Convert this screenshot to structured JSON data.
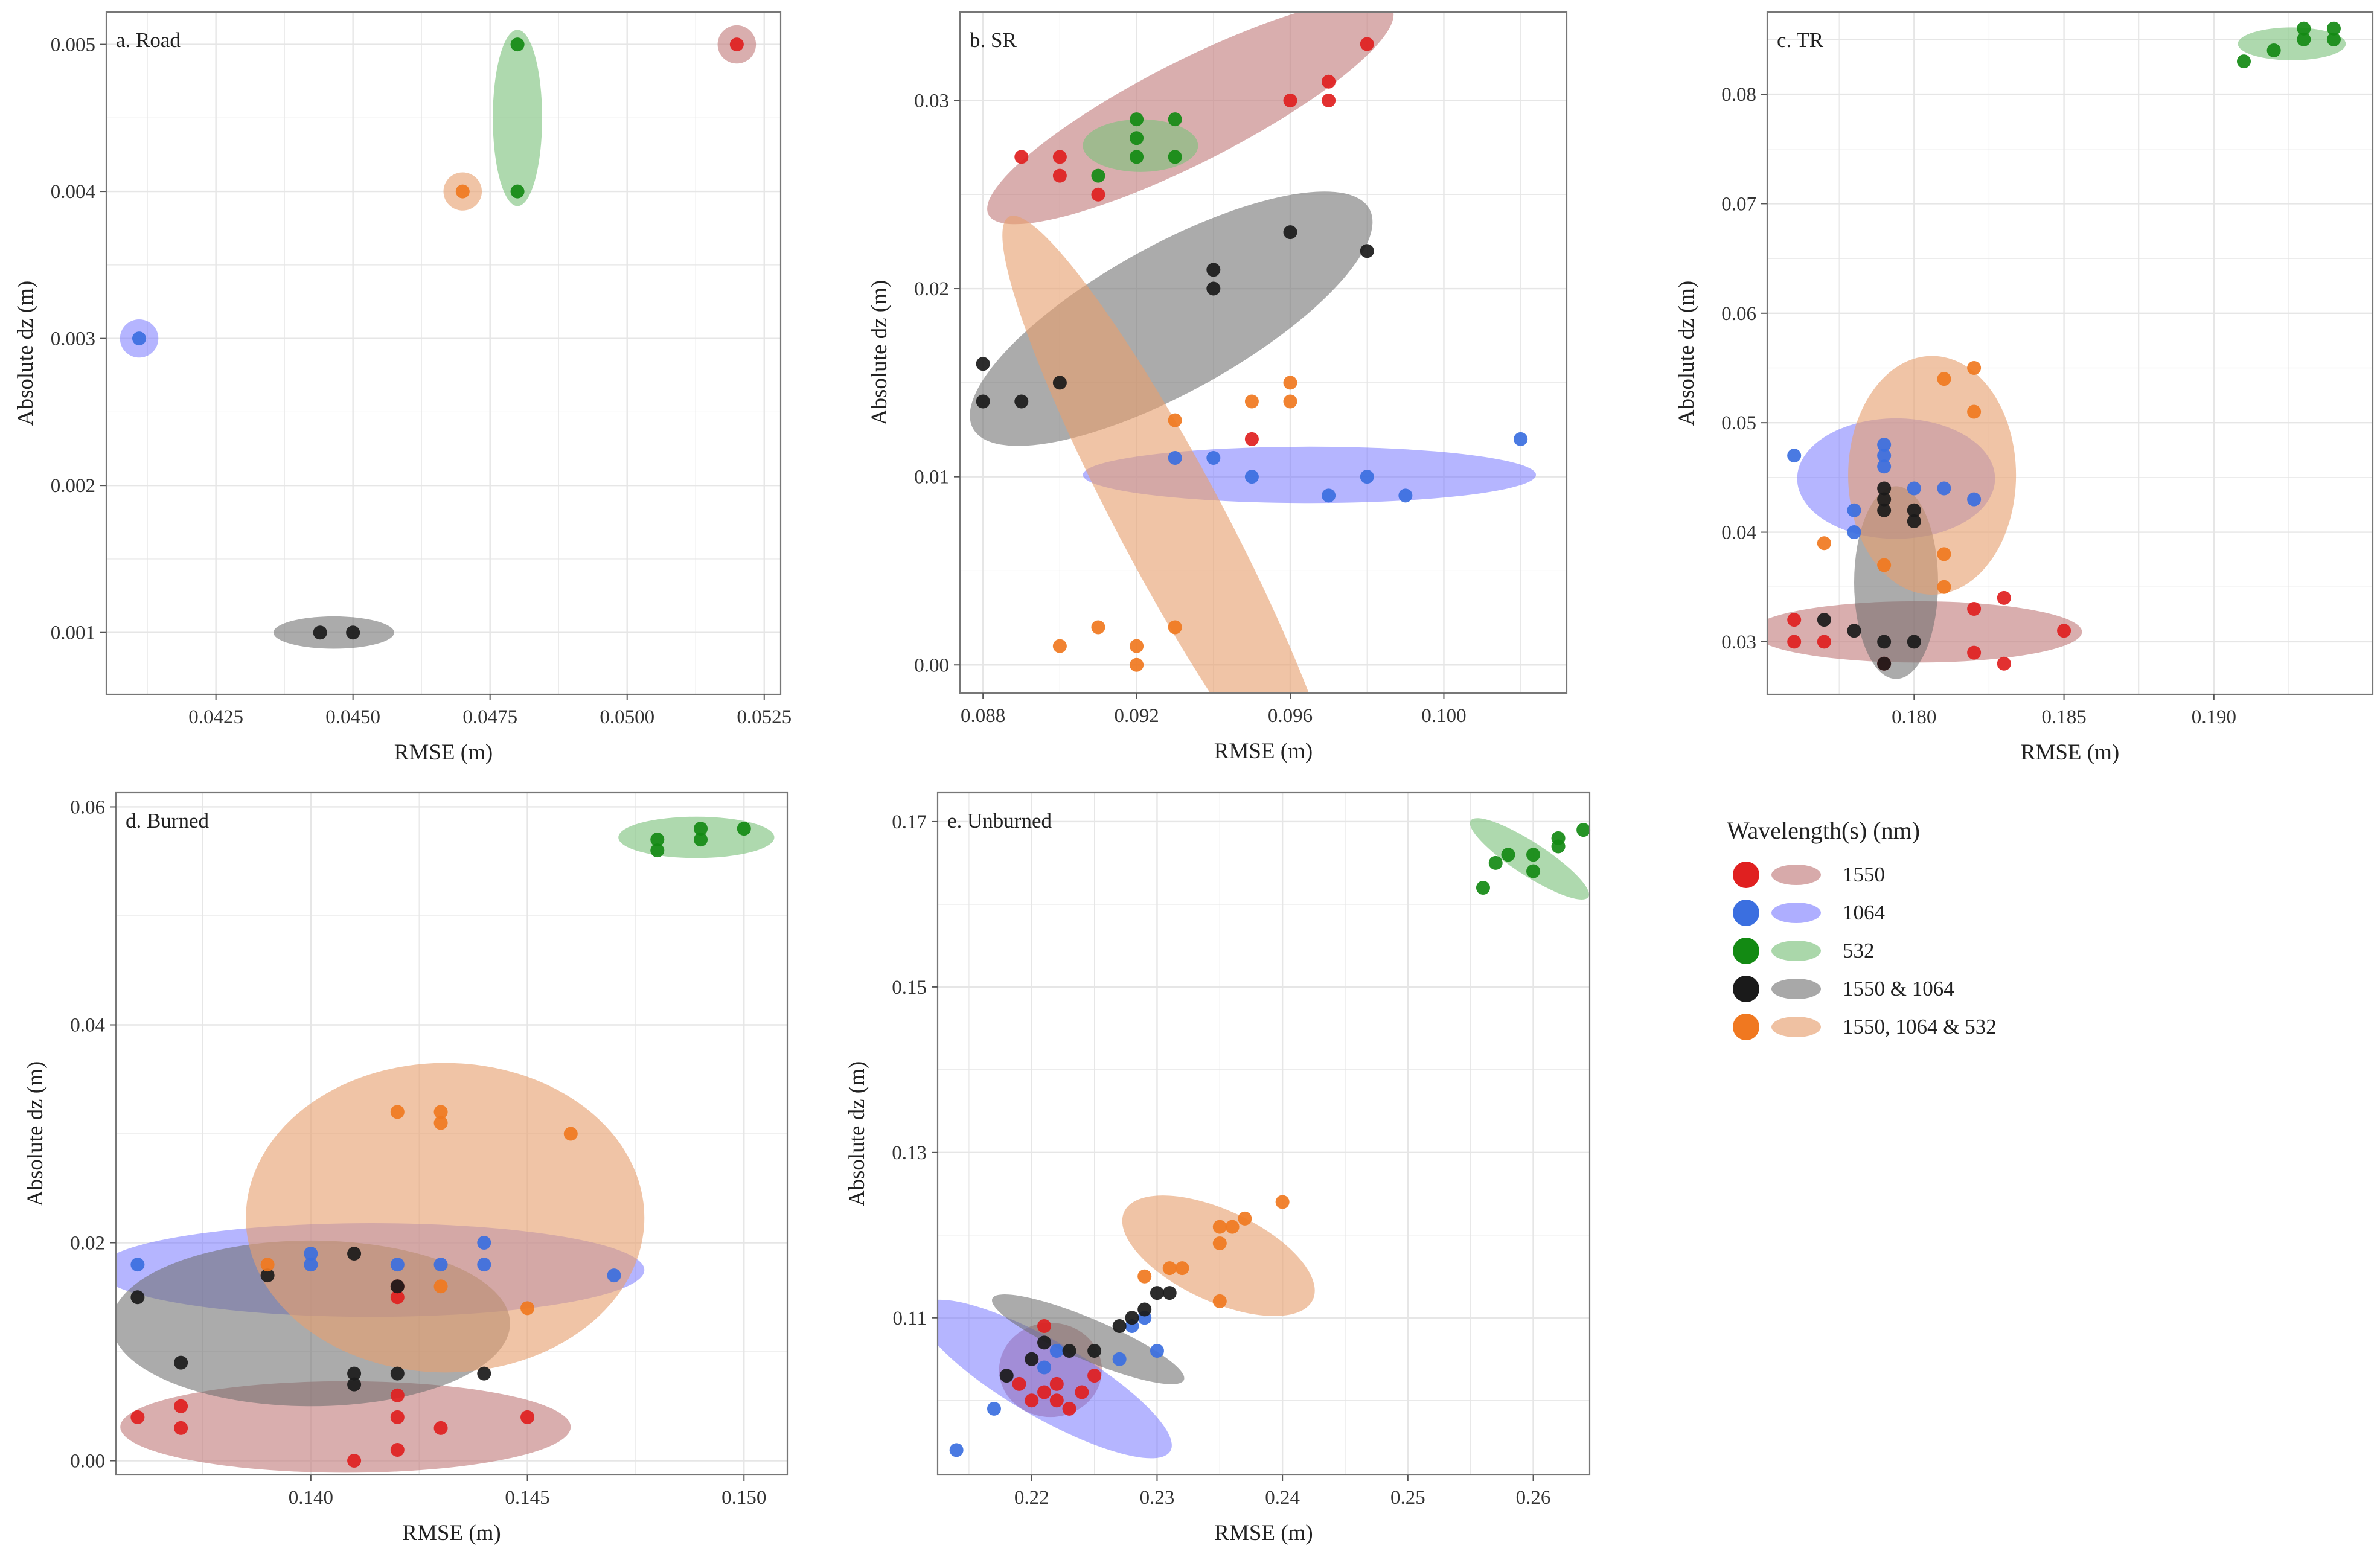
{
  "legend": {
    "title": "Wavelength(s) (nm)",
    "entries": [
      {
        "label": "1550",
        "dot": "#e02020",
        "fill": "#c27c7c"
      },
      {
        "label": "1064",
        "dot": "#3b6fe0",
        "fill": "#6b6bff"
      },
      {
        "label": "532",
        "dot": "#138a13",
        "fill": "#7dc27d"
      },
      {
        "label": "1550 & 1064",
        "dot": "#1a1a1a",
        "fill": "#6e6e6e"
      },
      {
        "label": "1550, 1064 & 532",
        "dot": "#f07820",
        "fill": "#e6a070"
      }
    ]
  },
  "chart_data": [
    {
      "type": "scatter",
      "title": "a. Road",
      "xlabel": "RMSE (m)",
      "ylabel": "Absolute dz (m)",
      "xlim": [
        0.0405,
        0.0528
      ],
      "ylim": [
        0.00058,
        0.00522
      ],
      "xticks": [
        0.0425,
        0.045,
        0.0475,
        0.05,
        0.0525
      ],
      "xtick_labels": [
        "0.0425",
        "0.0450",
        "0.0475",
        "0.0500",
        "0.0525"
      ],
      "yticks": [
        0.001,
        0.002,
        0.003,
        0.004,
        0.005
      ],
      "ytick_labels": [
        "0.001",
        "0.002",
        "0.003",
        "0.004",
        "0.005"
      ],
      "series": [
        {
          "name": "1550",
          "x": [
            0.052
          ],
          "y": [
            0.005
          ],
          "ellipse": {
            "cx": 0.052,
            "cy": 0.005,
            "rx": 0.00035,
            "ry": 0.00013,
            "angle": 0
          }
        },
        {
          "name": "1064",
          "x": [
            0.0411
          ],
          "y": [
            0.003
          ],
          "ellipse": {
            "cx": 0.0411,
            "cy": 0.003,
            "rx": 0.00035,
            "ry": 0.00013,
            "angle": 0
          }
        },
        {
          "name": "532",
          "x": [
            0.048,
            0.048
          ],
          "y": [
            0.005,
            0.004
          ],
          "ellipse": {
            "cx": 0.048,
            "cy": 0.0045,
            "rx": 0.00045,
            "ry": 0.0006,
            "angle": 0
          }
        },
        {
          "name": "1550 & 1064",
          "x": [
            0.0444,
            0.045
          ],
          "y": [
            0.001,
            0.001
          ],
          "ellipse": {
            "cx": 0.04465,
            "cy": 0.001,
            "rx": 0.0011,
            "ry": 0.00011,
            "angle": 0
          }
        },
        {
          "name": "1550, 1064 & 532",
          "x": [
            0.047
          ],
          "y": [
            0.004
          ],
          "ellipse": {
            "cx": 0.047,
            "cy": 0.004,
            "rx": 0.00035,
            "ry": 0.00013,
            "angle": 0
          }
        }
      ]
    },
    {
      "type": "scatter",
      "title": "b. SR",
      "xlabel": "RMSE (m)",
      "ylabel": "Absolute dz (m)",
      "xlim": [
        0.0874,
        0.1032
      ],
      "ylim": [
        -0.0015,
        0.0347
      ],
      "xticks": [
        0.088,
        0.092,
        0.096,
        0.1
      ],
      "xtick_labels": [
        "0.088",
        "0.092",
        "0.096",
        "0.100"
      ],
      "yticks": [
        0.0,
        0.01,
        0.02,
        0.03
      ],
      "ytick_labels": [
        "0.00",
        "0.01",
        "0.02",
        "0.03"
      ],
      "series": [
        {
          "name": "1550",
          "x": [
            0.089,
            0.09,
            0.09,
            0.091,
            0.096,
            0.097,
            0.097,
            0.098,
            0.095
          ],
          "y": [
            0.027,
            0.027,
            0.026,
            0.025,
            0.03,
            0.031,
            0.03,
            0.033,
            0.012
          ],
          "ellipse": {
            "cx": 0.0934,
            "cy": 0.0294,
            "rx": 0.0059,
            "ry": 0.0027,
            "angle": 27
          }
        },
        {
          "name": "1064",
          "x": [
            0.093,
            0.094,
            0.095,
            0.097,
            0.098,
            0.099,
            0.102
          ],
          "y": [
            0.011,
            0.011,
            0.01,
            0.009,
            0.01,
            0.009,
            0.012
          ],
          "ellipse": {
            "cx": 0.0965,
            "cy": 0.0101,
            "rx": 0.0059,
            "ry": 0.0015,
            "angle": 0
          }
        },
        {
          "name": "532",
          "x": [
            0.091,
            0.092,
            0.092,
            0.092,
            0.093,
            0.093
          ],
          "y": [
            0.026,
            0.029,
            0.028,
            0.027,
            0.029,
            0.027
          ],
          "ellipse": {
            "cx": 0.0921,
            "cy": 0.0276,
            "rx": 0.0015,
            "ry": 0.0014,
            "angle": 0
          }
        },
        {
          "name": "1550 & 1064",
          "x": [
            0.088,
            0.088,
            0.089,
            0.09,
            0.094,
            0.094,
            0.096,
            0.098
          ],
          "y": [
            0.016,
            0.014,
            0.014,
            0.015,
            0.021,
            0.02,
            0.023,
            0.022
          ],
          "ellipse": {
            "cx": 0.0929,
            "cy": 0.0184,
            "rx": 0.0059,
            "ry": 0.0039,
            "angle": 29
          }
        },
        {
          "name": "1550, 1064 & 532",
          "x": [
            0.09,
            0.091,
            0.092,
            0.092,
            0.093,
            0.093,
            0.095,
            0.096,
            0.096
          ],
          "y": [
            0.001,
            0.002,
            0.001,
            0.0,
            0.002,
            0.013,
            0.014,
            0.015,
            0.014
          ],
          "ellipse": {
            "cx": 0.0929,
            "cy": 0.0076,
            "rx": 0.009,
            "ry": 0.0028,
            "angle": -62
          }
        }
      ]
    },
    {
      "type": "scatter",
      "title": "c. TR",
      "xlabel": "RMSE (m)",
      "ylabel": "Absolute dz (m)",
      "xlim": [
        0.1751,
        0.1953
      ],
      "ylim": [
        0.0252,
        0.0875
      ],
      "xticks": [
        0.18,
        0.185,
        0.19
      ],
      "xtick_labels": [
        "0.180",
        "0.185",
        "0.190"
      ],
      "yticks": [
        0.03,
        0.04,
        0.05,
        0.06,
        0.07,
        0.08
      ],
      "ytick_labels": [
        "0.03",
        "0.04",
        "0.05",
        "0.06",
        "0.07",
        "0.08"
      ],
      "series": [
        {
          "name": "1550",
          "x": [
            0.176,
            0.176,
            0.177,
            0.179,
            0.182,
            0.182,
            0.183,
            0.183,
            0.185
          ],
          "y": [
            0.032,
            0.03,
            0.03,
            0.028,
            0.033,
            0.029,
            0.034,
            0.028,
            0.031
          ],
          "ellipse": {
            "cx": 0.1801,
            "cy": 0.0309,
            "rx": 0.0055,
            "ry": 0.0028,
            "angle": 0
          }
        },
        {
          "name": "1064",
          "x": [
            0.176,
            0.178,
            0.178,
            0.179,
            0.179,
            0.179,
            0.18,
            0.181,
            0.182
          ],
          "y": [
            0.047,
            0.042,
            0.04,
            0.048,
            0.047,
            0.046,
            0.044,
            0.044,
            0.043
          ],
          "ellipse": {
            "cx": 0.1794,
            "cy": 0.0449,
            "rx": 0.0033,
            "ry": 0.0055,
            "angle": 0
          }
        },
        {
          "name": "532",
          "x": [
            0.191,
            0.192,
            0.193,
            0.193,
            0.194,
            0.194
          ],
          "y": [
            0.083,
            0.084,
            0.086,
            0.085,
            0.086,
            0.085
          ],
          "ellipse": {
            "cx": 0.1926,
            "cy": 0.0846,
            "rx": 0.0018,
            "ry": 0.0015,
            "angle": 0
          }
        },
        {
          "name": "1550 & 1064",
          "x": [
            0.177,
            0.178,
            0.179,
            0.179,
            0.179,
            0.179,
            0.18,
            0.18,
            0.18,
            0.179
          ],
          "y": [
            0.032,
            0.031,
            0.03,
            0.044,
            0.043,
            0.042,
            0.042,
            0.041,
            0.03,
            0.028
          ],
          "ellipse": {
            "cx": 0.1794,
            "cy": 0.0354,
            "rx": 0.0014,
            "ry": 0.0088,
            "angle": 0
          }
        },
        {
          "name": "1550, 1064 & 532",
          "x": [
            0.177,
            0.179,
            0.181,
            0.181,
            0.181,
            0.182,
            0.182
          ],
          "y": [
            0.039,
            0.037,
            0.054,
            0.038,
            0.035,
            0.055,
            0.051
          ],
          "ellipse": {
            "cx": 0.1806,
            "cy": 0.0452,
            "rx": 0.0028,
            "ry": 0.0109,
            "angle": 0
          }
        }
      ]
    },
    {
      "type": "scatter",
      "title": "d. Burned",
      "xlabel": "RMSE (m)",
      "ylabel": "Absolute dz (m)",
      "xlim": [
        0.1355,
        0.151
      ],
      "ylim": [
        -0.0013,
        0.0613
      ],
      "xticks": [
        0.14,
        0.145,
        0.15
      ],
      "xtick_labels": [
        "0.140",
        "0.145",
        "0.150"
      ],
      "yticks": [
        0.0,
        0.02,
        0.04,
        0.06
      ],
      "ytick_labels": [
        "0.00",
        "0.02",
        "0.04",
        "0.06"
      ],
      "series": [
        {
          "name": "1550",
          "x": [
            0.136,
            0.137,
            0.137,
            0.141,
            0.142,
            0.142,
            0.142,
            0.143,
            0.145,
            0.142,
            0.142
          ],
          "y": [
            0.004,
            0.005,
            0.003,
            0.0,
            0.001,
            0.006,
            0.004,
            0.003,
            0.004,
            0.016,
            0.015
          ],
          "ellipse": {
            "cx": 0.1408,
            "cy": 0.0031,
            "rx": 0.0052,
            "ry": 0.0042,
            "angle": 0
          }
        },
        {
          "name": "1064",
          "x": [
            0.136,
            0.14,
            0.14,
            0.142,
            0.143,
            0.144,
            0.144,
            0.147
          ],
          "y": [
            0.018,
            0.019,
            0.018,
            0.018,
            0.018,
            0.02,
            0.018,
            0.017
          ],
          "ellipse": {
            "cx": 0.1414,
            "cy": 0.0175,
            "rx": 0.0063,
            "ry": 0.0043,
            "angle": 0
          }
        },
        {
          "name": "532",
          "x": [
            0.148,
            0.148,
            0.149,
            0.149,
            0.15
          ],
          "y": [
            0.057,
            0.056,
            0.058,
            0.057,
            0.058
          ],
          "ellipse": {
            "cx": 0.1489,
            "cy": 0.0572,
            "rx": 0.0018,
            "ry": 0.0019,
            "angle": 0
          }
        },
        {
          "name": "1550 & 1064",
          "x": [
            0.136,
            0.137,
            0.139,
            0.141,
            0.141,
            0.141,
            0.142,
            0.142,
            0.144
          ],
          "y": [
            0.015,
            0.009,
            0.017,
            0.019,
            0.008,
            0.007,
            0.016,
            0.008,
            0.008
          ],
          "ellipse": {
            "cx": 0.14,
            "cy": 0.0126,
            "rx": 0.0046,
            "ry": 0.0076,
            "angle": 0
          }
        },
        {
          "name": "1550, 1064 & 532",
          "x": [
            0.139,
            0.142,
            0.143,
            0.143,
            0.143,
            0.145,
            0.146
          ],
          "y": [
            0.018,
            0.032,
            0.032,
            0.031,
            0.016,
            0.014,
            0.03
          ],
          "ellipse": {
            "cx": 0.1431,
            "cy": 0.0223,
            "rx": 0.0046,
            "ry": 0.0142,
            "angle": 0
          }
        }
      ]
    },
    {
      "type": "scatter",
      "title": "e. Unburned",
      "xlabel": "RMSE (m)",
      "ylabel": "Absolute dz (m)",
      "xlim": [
        0.2125,
        0.2645
      ],
      "ylim": [
        0.091,
        0.1735
      ],
      "xticks": [
        0.22,
        0.23,
        0.24,
        0.25,
        0.26
      ],
      "xtick_labels": [
        "0.22",
        "0.23",
        "0.24",
        "0.25",
        "0.26"
      ],
      "yticks": [
        0.11,
        0.13,
        0.15,
        0.17
      ],
      "ytick_labels": [
        "0.11",
        "0.13",
        "0.15",
        "0.17"
      ],
      "series": [
        {
          "name": "1550",
          "x": [
            0.219,
            0.22,
            0.221,
            0.222,
            0.222,
            0.223,
            0.224,
            0.225,
            0.221
          ],
          "y": [
            0.102,
            0.1,
            0.101,
            0.1,
            0.102,
            0.099,
            0.101,
            0.103,
            0.109
          ],
          "ellipse": {
            "cx": 0.2215,
            "cy": 0.1037,
            "rx": 0.0041,
            "ry": 0.0057,
            "angle": 0
          }
        },
        {
          "name": "1064",
          "x": [
            0.214,
            0.217,
            0.221,
            0.222,
            0.227,
            0.228,
            0.229,
            0.23
          ],
          "y": [
            0.094,
            0.099,
            0.104,
            0.106,
            0.105,
            0.109,
            0.11,
            0.106
          ],
          "ellipse": {
            "cx": 0.2211,
            "cy": 0.1026,
            "rx": 0.0115,
            "ry": 0.0046,
            "angle": -30
          }
        },
        {
          "name": "532",
          "x": [
            0.256,
            0.257,
            0.258,
            0.26,
            0.26,
            0.262,
            0.262,
            0.264
          ],
          "y": [
            0.162,
            0.165,
            0.166,
            0.166,
            0.164,
            0.168,
            0.167,
            0.169
          ],
          "ellipse": {
            "cx": 0.2597,
            "cy": 0.1655,
            "rx": 0.0056,
            "ry": 0.002,
            "angle": -33
          }
        },
        {
          "name": "1550 & 1064",
          "x": [
            0.218,
            0.22,
            0.221,
            0.223,
            0.225,
            0.227,
            0.228,
            0.229,
            0.23,
            0.231
          ],
          "y": [
            0.103,
            0.105,
            0.107,
            0.106,
            0.106,
            0.109,
            0.11,
            0.111,
            0.113,
            0.113
          ],
          "ellipse": {
            "cx": 0.2245,
            "cy": 0.1074,
            "rx": 0.0083,
            "ry": 0.0025,
            "angle": -23
          }
        },
        {
          "name": "1550, 1064 & 532",
          "x": [
            0.229,
            0.231,
            0.232,
            0.235,
            0.235,
            0.236,
            0.237,
            0.235,
            0.24
          ],
          "y": [
            0.115,
            0.116,
            0.116,
            0.121,
            0.119,
            0.121,
            0.122,
            0.112,
            0.124
          ],
          "ellipse": {
            "cx": 0.2349,
            "cy": 0.1175,
            "rx": 0.0083,
            "ry": 0.0055,
            "angle": -25
          }
        }
      ]
    }
  ]
}
